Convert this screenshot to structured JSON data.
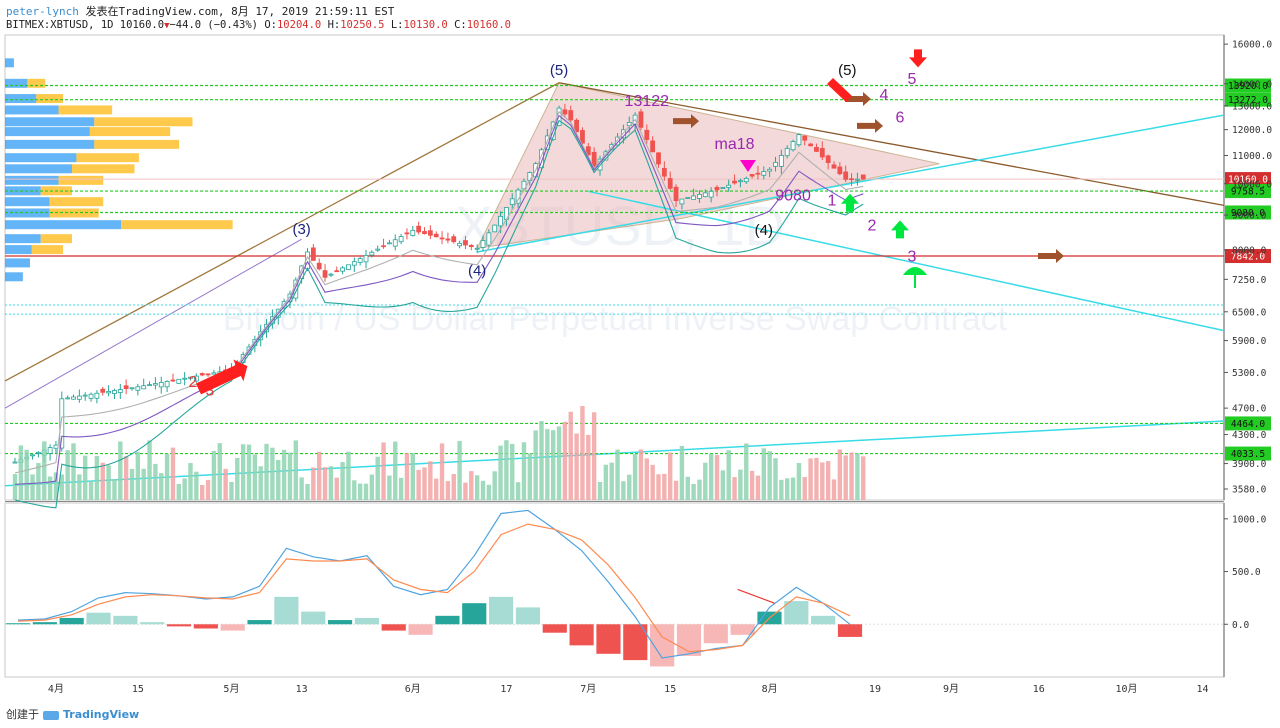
{
  "header": {
    "author": "peter-lynch",
    "published": "发表在TradingView.com, 8月 17, 2019 21:59:11 EST",
    "symbol": "BITMEX:XBTUSD, 1D",
    "last": "10160.0",
    "change": "−44.0 (−0.43%)",
    "ohlc": {
      "o_label": "O:",
      "o": "10204.0",
      "h_label": "H:",
      "h": "10250.5",
      "l_label": "L:",
      "l": "10130.0",
      "c_label": "C:",
      "c": "10160.0"
    }
  },
  "footer": {
    "created_by": "创建于",
    "brand": "TradingView"
  },
  "colors": {
    "up": "#26a69a",
    "down": "#ef5350",
    "green_line": "#22cc22",
    "cyan_line": "#38dbe8",
    "red_level": "#d32f2f",
    "triangle_fill": "#e8b4b4",
    "trend_brown": "#9c6a2a",
    "wave_label": "#1a237e",
    "purple_label": "#9c27b0",
    "red_label": "#e53935"
  },
  "chart_data": [
    {
      "type": "candlestick",
      "title": "",
      "watermark_symbol": "XBTUSD, 1D",
      "watermark_text": "Bitcoin / US Dollar Perpetual Inverse Swap Contract",
      "x_ticks": [
        "4月",
        "15",
        "5月",
        "13",
        "6月",
        "17",
        "7月",
        "15",
        "8月",
        "19",
        "9月",
        "16",
        "10月",
        "14"
      ],
      "y_ticks": [
        "16000.0",
        "14000.0",
        "13000.0",
        "12000.0",
        "11000.0",
        "10000.0",
        "9000.0",
        "8000.0",
        "7250.0",
        "6500.0",
        "5900.0",
        "5300.0",
        "4700.0",
        "4300.0",
        "3900.0",
        "3580.0"
      ],
      "scale": "log",
      "ylim": [
        3450,
        16500
      ],
      "candles_close_approx": [
        {
          "date": "2019-03-25",
          "close": 3920
        },
        {
          "date": "2019-04-01",
          "close": 4150
        },
        {
          "date": "2019-04-02",
          "close": 4850
        },
        {
          "date": "2019-04-15",
          "close": 5050
        },
        {
          "date": "2019-05-01",
          "close": 5350
        },
        {
          "date": "2019-05-11",
          "close": 6900
        },
        {
          "date": "2019-05-14",
          "close": 7950
        },
        {
          "date": "2019-05-17",
          "close": 7300
        },
        {
          "date": "2019-06-01",
          "close": 8550
        },
        {
          "date": "2019-06-12",
          "close": 8050
        },
        {
          "date": "2019-06-15",
          "close": 8700
        },
        {
          "date": "2019-06-22",
          "close": 10700
        },
        {
          "date": "2019-06-26",
          "close": 12900
        },
        {
          "date": "2019-06-28",
          "close": 12400
        },
        {
          "date": "2019-07-02",
          "close": 10600
        },
        {
          "date": "2019-07-09",
          "close": 12600
        },
        {
          "date": "2019-07-16",
          "close": 9450
        },
        {
          "date": "2019-07-23",
          "close": 9800
        },
        {
          "date": "2019-08-01",
          "close": 10500
        },
        {
          "date": "2019-08-06",
          "close": 11800
        },
        {
          "date": "2019-08-14",
          "close": 10150
        },
        {
          "date": "2019-08-17",
          "close": 10160
        }
      ],
      "price_levels": [
        {
          "value": "13920.0",
          "color": "green",
          "style": "dashed"
        },
        {
          "value": "13272.0",
          "color": "green",
          "style": "dashed"
        },
        {
          "value": "10160.0",
          "color": "red",
          "style": "label"
        },
        {
          "value": "9758.5",
          "color": "green",
          "style": "dashed"
        },
        {
          "value": "9080.0",
          "color": "green",
          "style": "dashed"
        },
        {
          "value": "7842.0",
          "color": "red",
          "style": "solid"
        },
        {
          "value": "4464.0",
          "color": "green",
          "style": "dashed"
        },
        {
          "value": "4033.5",
          "color": "green",
          "style": "dashed"
        }
      ],
      "annotations": [
        {
          "text": "(5)",
          "price": 14100,
          "kind": "wave"
        },
        {
          "text": "(3)",
          "price": 8250,
          "kind": "wave"
        },
        {
          "text": "(4)",
          "price": 6950,
          "kind": "wave"
        },
        {
          "text": "(5)",
          "price": 14100,
          "kind": "wave"
        },
        {
          "text": "(4)",
          "price": 9000,
          "kind": "wave"
        },
        {
          "text": "13122",
          "price": 12900,
          "kind": "price"
        },
        {
          "text": "ma18",
          "price": 11000,
          "kind": "ma"
        },
        {
          "text": "9080",
          "price": 9200,
          "kind": "price"
        },
        {
          "text": "1",
          "kind": "scenario"
        },
        {
          "text": "2",
          "kind": "scenario"
        },
        {
          "text": "3",
          "kind": "scenario"
        },
        {
          "text": "4",
          "kind": "scenario"
        },
        {
          "text": "5",
          "kind": "scenario"
        },
        {
          "text": "6",
          "kind": "scenario"
        },
        {
          "text": "2",
          "kind": "sell-arrow"
        },
        {
          "text": "3",
          "kind": "sell-arrow"
        }
      ],
      "volume_profile_bins": [
        {
          "price": 15000,
          "buy": 10,
          "sell": 0
        },
        {
          "price": 14000,
          "buy": 25,
          "sell": 20
        },
        {
          "price": 13300,
          "buy": 35,
          "sell": 30
        },
        {
          "price": 12800,
          "buy": 60,
          "sell": 60
        },
        {
          "price": 12300,
          "buy": 100,
          "sell": 110
        },
        {
          "price": 11900,
          "buy": 95,
          "sell": 90
        },
        {
          "price": 11400,
          "buy": 100,
          "sell": 95
        },
        {
          "price": 10900,
          "buy": 80,
          "sell": 70
        },
        {
          "price": 10500,
          "buy": 75,
          "sell": 70
        },
        {
          "price": 10100,
          "buy": 60,
          "sell": 50
        },
        {
          "price": 9750,
          "buy": 40,
          "sell": 35
        },
        {
          "price": 9400,
          "buy": 50,
          "sell": 60
        },
        {
          "price": 9050,
          "buy": 50,
          "sell": 55
        },
        {
          "price": 8700,
          "buy": 130,
          "sell": 125
        },
        {
          "price": 8300,
          "buy": 40,
          "sell": 35
        },
        {
          "price": 8000,
          "buy": 30,
          "sell": 35
        },
        {
          "price": 7650,
          "buy": 28,
          "sell": 0
        },
        {
          "price": 7300,
          "buy": 20,
          "sell": 0
        }
      ],
      "volume_ylim_label": ""
    },
    {
      "type": "bar",
      "title": "",
      "name_hidden": "MACD histogram",
      "y_ticks": [
        "1000.0",
        "500.0",
        "0.0"
      ],
      "ylim": [
        -500,
        1150
      ],
      "macd_line_approx": [
        40,
        50,
        120,
        250,
        300,
        290,
        270,
        240,
        260,
        360,
        720,
        640,
        600,
        650,
        360,
        280,
        330,
        650,
        1050,
        1080,
        900,
        700,
        400,
        70,
        -320,
        -280,
        -230,
        -200,
        160,
        350,
        200,
        0
      ],
      "signal_line_approx": [
        30,
        40,
        90,
        190,
        260,
        280,
        270,
        250,
        240,
        300,
        620,
        600,
        600,
        620,
        420,
        330,
        300,
        500,
        850,
        950,
        900,
        800,
        560,
        250,
        -120,
        -260,
        -240,
        -200,
        60,
        260,
        200,
        80
      ],
      "histogram_approx": [
        10,
        20,
        60,
        110,
        80,
        20,
        -20,
        -40,
        -60,
        40,
        260,
        120,
        40,
        60,
        -60,
        -100,
        80,
        200,
        260,
        160,
        -80,
        -200,
        -280,
        -340,
        -400,
        -300,
        -180,
        -100,
        120,
        220,
        80,
        -120
      ]
    }
  ]
}
